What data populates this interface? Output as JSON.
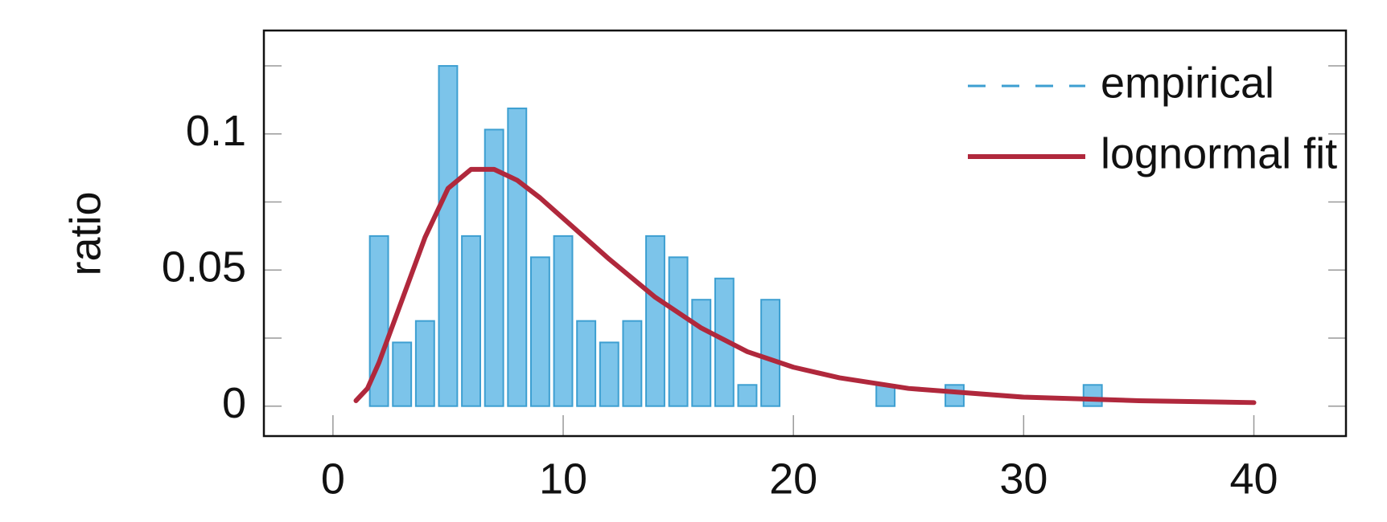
{
  "chart_data": {
    "type": "histogram",
    "ylabel": "ratio",
    "bins": [
      1.5,
      2.5,
      3.5,
      4.5,
      5.5,
      6.5,
      7.5,
      8.5,
      9.5,
      10.5,
      11.5,
      12.5,
      13.5,
      14.5,
      15.5,
      16.5,
      17.5,
      18.5,
      19.5,
      20.5,
      21.5,
      22.5,
      23.5,
      24.5,
      25.5,
      26.5,
      27.5,
      28.5,
      29.5,
      30.5,
      31.5,
      32.5,
      33.5
    ],
    "series": [
      {
        "name": "empirical",
        "type": "histogram",
        "color": "#7cc4ea",
        "edgecolor": "#3d9fd1",
        "values": [
          0.0625,
          0.0234,
          0.0313,
          0.125,
          0.0625,
          0.1016,
          0.1094,
          0.0547,
          0.0625,
          0.0313,
          0.0234,
          0.0313,
          0.0625,
          0.0547,
          0.0391,
          0.0469,
          0.0078,
          0.0391,
          0,
          0,
          0,
          0,
          0.0078,
          0,
          0,
          0.0078,
          0,
          0,
          0,
          0,
          0,
          0.0078
        ]
      },
      {
        "name": "lognormal fit",
        "type": "line",
        "color": "#b0283c",
        "x": [
          1,
          1.5,
          2,
          3,
          4,
          5,
          6,
          7,
          8,
          9,
          10,
          12,
          14,
          16,
          18,
          20,
          22,
          25,
          30,
          35,
          40
        ],
        "values": [
          0.002,
          0.0065,
          0.016,
          0.039,
          0.062,
          0.08,
          0.087,
          0.087,
          0.083,
          0.0765,
          0.069,
          0.054,
          0.04,
          0.0287,
          0.02,
          0.0143,
          0.0104,
          0.0065,
          0.0033,
          0.002,
          0.0013
        ]
      }
    ],
    "xlim": [
      -3,
      44
    ],
    "ylim": [
      -0.011,
      0.138
    ],
    "xticks": [
      0,
      10,
      20,
      30,
      40
    ],
    "yticks": [
      0,
      0.05,
      0.1
    ],
    "yminorticks": [
      0.025,
      0.075,
      0.125
    ],
    "legend": "upper right"
  }
}
